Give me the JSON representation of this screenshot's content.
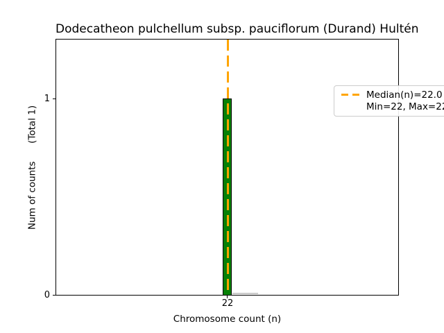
{
  "figure": {
    "title": "Dodecatheon pulchellum subsp. pauciflorum (Durand) Hultén",
    "xlabel": "Chromosome count (n)",
    "ylabel_rotated": "Num of counts      (Total 1)",
    "xticks": [
      "22"
    ],
    "yticks": [
      "0",
      "1"
    ],
    "legend": {
      "median_label": "Median(n)=22.0",
      "minmax_label": "Min=22, Max=22"
    },
    "colors": {
      "bar_fill": "#068006",
      "bar_edge": "#000000",
      "median_line": "#FFA500",
      "spine": "#000000",
      "legend_border": "#cccccc"
    }
  },
  "chart_data": {
    "type": "bar",
    "title": "Dodecatheon pulchellum subsp. pauciflorum (Durand) Hultén",
    "xlabel": "Chromosome count (n)",
    "ylabel": "Num of counts      (Total 1)",
    "categories": [
      22
    ],
    "values": [
      1
    ],
    "total_counts": 1,
    "median_n": 22.0,
    "min_n": 22,
    "max_n": 22,
    "x_tick_values": [
      22
    ],
    "y_tick_values": [
      0,
      1
    ],
    "ylim": [
      0,
      1.31
    ],
    "grid": false,
    "legend_position": "upper right",
    "legend_entries": [
      "Median(n)=22.0",
      "Min=22, Max=22"
    ],
    "bar_color": "#068006",
    "bar_edge_color": "#000000",
    "median_line_color": "#FFA500",
    "median_line_style": "dashed"
  }
}
